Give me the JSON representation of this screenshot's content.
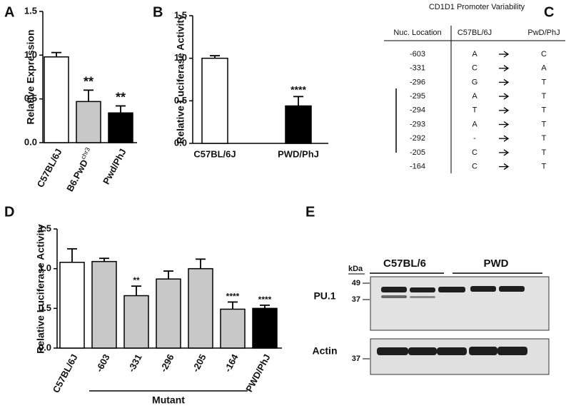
{
  "panels": [
    "A",
    "B",
    "C",
    "D",
    "E"
  ],
  "chart_data": [
    {
      "type": "bar",
      "ylabel": "Relative Expression",
      "categories": [
        "C57BL/6J",
        "B6.PwD",
        "Pwd/PhJ"
      ],
      "category_superscripts": [
        null,
        "chr3",
        null
      ],
      "values": [
        0.98,
        0.47,
        0.34
      ],
      "errors": [
        0.05,
        0.13,
        0.08
      ],
      "colors": [
        "#ffffff",
        "#c8c8c8",
        "#000000"
      ],
      "annotations": [
        null,
        "**",
        "**"
      ],
      "ylim": [
        0,
        1.5
      ],
      "yticks": [
        {
          "value": 0,
          "label": "0.0"
        },
        {
          "value": 0.5,
          "label": "0.5"
        },
        {
          "value": 1,
          "label": "1.0"
        },
        {
          "value": 1.5,
          "label": "1.5"
        }
      ]
    },
    {
      "type": "bar",
      "ylabel": "Relative Luciferase Activity",
      "categories": [
        "C57BL/6J",
        "PWD/PhJ"
      ],
      "values": [
        1.0,
        0.44
      ],
      "errors": [
        0.03,
        0.11
      ],
      "colors": [
        "#ffffff",
        "#000000"
      ],
      "annotations": [
        null,
        "****"
      ],
      "ylim": [
        0,
        1.5
      ],
      "yticks": [
        {
          "value": 0,
          "label": "0.0"
        },
        {
          "value": 0.5,
          "label": "0.5"
        },
        {
          "value": 1,
          "label": "1.0"
        },
        {
          "value": 1.5,
          "label": "1.5"
        }
      ]
    },
    {
      "type": "bar",
      "ylabel": "Relative Luciferase Activity",
      "group_label": "Mutant",
      "categories": [
        "C57BL/6J",
        "-603",
        "-331",
        "-296",
        "-205",
        "-164",
        "PWD/PhJ"
      ],
      "values": [
        1.08,
        1.09,
        0.66,
        0.87,
        1.0,
        0.49,
        0.5
      ],
      "errors": [
        0.17,
        0.04,
        0.12,
        0.1,
        0.12,
        0.09,
        0.04
      ],
      "colors": [
        "#ffffff",
        "#c8c8c8",
        "#c8c8c8",
        "#c8c8c8",
        "#c8c8c8",
        "#c8c8c8",
        "#000000"
      ],
      "annotations": [
        null,
        null,
        "**",
        null,
        null,
        "****",
        "****"
      ],
      "ylim": [
        0,
        1.5
      ],
      "yticks": [
        {
          "value": 0,
          "label": "0.0"
        },
        {
          "value": 0.5,
          "label": "0.5"
        },
        {
          "value": 1,
          "label": "1.0"
        },
        {
          "value": 1.5,
          "label": "1.5"
        }
      ]
    }
  ],
  "table": {
    "title": "CD1D1 Promoter Variability",
    "columns": [
      "Nuc. Location",
      "C57BL/6J",
      "PwD/PhJ"
    ],
    "rows": [
      [
        "-603",
        "A",
        "C"
      ],
      [
        "-331",
        "C",
        "A"
      ],
      [
        "-296",
        "G",
        "T"
      ],
      [
        "-295",
        "A",
        "T"
      ],
      [
        "-294",
        "T",
        "T"
      ],
      [
        "-293",
        "A",
        "T"
      ],
      [
        "-292",
        "-",
        "T"
      ],
      [
        "-205",
        "C",
        "T"
      ],
      [
        "-164",
        "C",
        "T"
      ]
    ]
  },
  "blot": {
    "unit": "kDa",
    "markers": [
      "49",
      "37"
    ],
    "actin_marker": "37",
    "groups": [
      "C57BL/6",
      "PWD"
    ],
    "rows": [
      "PU.1",
      "Actin"
    ]
  }
}
